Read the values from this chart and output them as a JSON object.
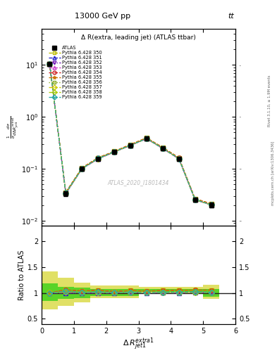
{
  "title_top": "13000 GeV pp",
  "title_top_right": "tt",
  "panel_title": "Δ R(extra, leading jet) (ATLAS ttbar)",
  "watermark": "ATLAS_2020_I1801434",
  "ylabel_ratio": "Ratio to ATLAS",
  "right_label": "Rivet 3.1.10, ≥ 1.9M events",
  "right_label2": "mcplots.cern.ch [arXiv:1306.3436]",
  "x_centers": [
    0.25,
    0.75,
    1.25,
    1.75,
    2.25,
    2.75,
    3.25,
    3.75,
    4.25,
    4.75,
    5.25
  ],
  "atlas_y": [
    10.5,
    0.033,
    0.1,
    0.155,
    0.21,
    0.28,
    0.38,
    0.245,
    0.155,
    0.025,
    0.02
  ],
  "atlas_yerr": [
    0.5,
    0.003,
    0.008,
    0.008,
    0.01,
    0.01,
    0.015,
    0.01,
    0.008,
    0.002,
    0.002
  ],
  "mc_names": [
    "Pythia 6.428 350",
    "Pythia 6.428 351",
    "Pythia 6.428 352",
    "Pythia 6.428 353",
    "Pythia 6.428 354",
    "Pythia 6.428 355",
    "Pythia 6.428 356",
    "Pythia 6.428 357",
    "Pythia 6.428 358",
    "Pythia 6.428 359"
  ],
  "mc_colors": [
    "#bbbb00",
    "#2222cc",
    "#7722bb",
    "#cc44cc",
    "#cc2222",
    "#cc7700",
    "#88aa22",
    "#cccc00",
    "#aacc00",
    "#22aaaa"
  ],
  "mc_markers": [
    "s",
    "^",
    "v",
    "^",
    "o",
    "*",
    "s",
    "D",
    "D",
    "D"
  ],
  "mc_linestyles": [
    "--",
    "--",
    "-.",
    "--",
    "--",
    "--",
    ":",
    "--",
    "--",
    "--"
  ],
  "mc_y_350": [
    10.6,
    0.035,
    0.103,
    0.162,
    0.215,
    0.292,
    0.393,
    0.256,
    0.162,
    0.0263,
    0.021
  ],
  "mc_y_351": [
    10.5,
    0.033,
    0.1,
    0.155,
    0.21,
    0.282,
    0.38,
    0.246,
    0.155,
    0.0252,
    0.0201
  ],
  "mc_y_352": [
    10.5,
    0.033,
    0.1,
    0.155,
    0.21,
    0.282,
    0.38,
    0.246,
    0.155,
    0.0252,
    0.0201
  ],
  "mc_y_353": [
    10.5,
    0.034,
    0.101,
    0.157,
    0.211,
    0.283,
    0.381,
    0.247,
    0.156,
    0.0254,
    0.0202
  ],
  "mc_y_354": [
    10.55,
    0.035,
    0.104,
    0.163,
    0.216,
    0.293,
    0.394,
    0.257,
    0.163,
    0.0264,
    0.0211
  ],
  "mc_y_355": [
    10.55,
    0.035,
    0.104,
    0.163,
    0.216,
    0.293,
    0.394,
    0.257,
    0.163,
    0.0264,
    0.0211
  ],
  "mc_y_356": [
    10.5,
    0.034,
    0.101,
    0.158,
    0.212,
    0.284,
    0.382,
    0.248,
    0.157,
    0.0255,
    0.0203
  ],
  "mc_y_357": [
    10.52,
    0.0335,
    0.101,
    0.157,
    0.211,
    0.283,
    0.382,
    0.247,
    0.156,
    0.0253,
    0.0201
  ],
  "mc_y_358": [
    10.52,
    0.0335,
    0.101,
    0.157,
    0.211,
    0.283,
    0.382,
    0.247,
    0.156,
    0.0253,
    0.0201
  ],
  "mc_y_359": [
    10.5,
    0.034,
    0.101,
    0.158,
    0.212,
    0.284,
    0.382,
    0.248,
    0.157,
    0.0255,
    0.0202
  ],
  "bin_edges": [
    0.0,
    0.5,
    1.0,
    1.5,
    2.0,
    2.5,
    3.0,
    3.5,
    4.0,
    4.5,
    5.0,
    5.5
  ],
  "outer_lo": [
    0.68,
    0.75,
    0.82,
    0.9,
    0.9,
    0.9,
    0.98,
    0.98,
    0.98,
    0.98,
    0.88
  ],
  "outer_hi": [
    1.42,
    1.3,
    1.2,
    1.15,
    1.15,
    1.15,
    1.12,
    1.12,
    1.12,
    1.12,
    1.16
  ],
  "inner_lo": [
    0.84,
    0.88,
    0.9,
    0.94,
    0.94,
    0.94,
    1.02,
    1.02,
    1.02,
    1.02,
    0.93
  ],
  "inner_hi": [
    1.18,
    1.12,
    1.1,
    1.07,
    1.07,
    1.07,
    1.07,
    1.07,
    1.07,
    1.07,
    1.07
  ],
  "band_inner_color": "#00cc00",
  "band_outer_color": "#cccc00",
  "xlim": [
    0,
    6
  ],
  "ylim_main": [
    0.008,
    50
  ],
  "ylim_ratio": [
    0.4,
    2.3
  ],
  "ratio_yticks": [
    0.5,
    1.0,
    1.5,
    2.0
  ],
  "ratio_yticklabels": [
    "0.5",
    "1",
    "1.5",
    "2"
  ]
}
